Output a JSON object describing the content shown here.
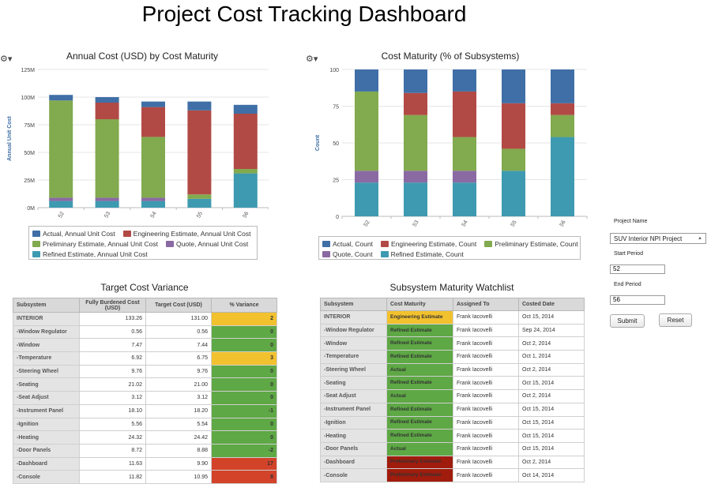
{
  "page": {
    "title": "Project Cost Tracking Dashboard"
  },
  "colors": {
    "actual": "#3f6fa6",
    "engineering": "#b14a45",
    "preliminary": "#82aa4e",
    "quote": "#8a6aa3",
    "refined": "#3e9ab0",
    "var_green": "#5ea845",
    "var_yellow": "#f2c12e",
    "var_red": "#d2432a",
    "mat_yellow": "#f2c12e",
    "mat_red": "#a01c0d"
  },
  "gear_glyph": "⚙▾",
  "chart_data": [
    {
      "type": "bar",
      "title": "Annual Cost (USD) by Cost Maturity",
      "ylabel": "Annual Unit Cost",
      "categories": [
        "52",
        "53",
        "54",
        "55",
        "56"
      ],
      "ylim": [
        0,
        125
      ],
      "yticks": [
        {
          "v": 0,
          "label": "0M"
        },
        {
          "v": 25,
          "label": "25M"
        },
        {
          "v": 50,
          "label": "50M"
        },
        {
          "v": 75,
          "label": "75M"
        },
        {
          "v": 100,
          "label": "100M"
        },
        {
          "v": 125,
          "label": "125M"
        }
      ],
      "stacked": true,
      "series": [
        {
          "name": "Refined Estimate, Annual Unit Cost",
          "key": "refined",
          "values": [
            6,
            6,
            6,
            8,
            31
          ]
        },
        {
          "name": "Quote, Annual Unit Cost",
          "key": "quote",
          "values": [
            3,
            3,
            3,
            0,
            0
          ]
        },
        {
          "name": "Preliminary Estimate, Annual Unit Cost",
          "key": "preliminary",
          "values": [
            88,
            71,
            55,
            4,
            4
          ]
        },
        {
          "name": "Engineering Estimate, Annual Unit Cost",
          "key": "engineering",
          "values": [
            0,
            15,
            27,
            76,
            50
          ]
        },
        {
          "name": "Actual, Annual Unit Cost",
          "key": "actual",
          "values": [
            5,
            5,
            5,
            8,
            8
          ]
        }
      ],
      "legend_rows": [
        [
          "Actual, Annual Unit Cost",
          "Engineering Estimate, Annual Unit Cost"
        ],
        [
          "Preliminary Estimate, Annual Unit Cost",
          "Quote, Annual Unit Cost"
        ],
        [
          "Refined Estimate, Annual Unit Cost"
        ]
      ]
    },
    {
      "type": "bar",
      "title": "Cost Maturity (% of Subsystems)",
      "ylabel": "Count",
      "categories": [
        "52",
        "53",
        "54",
        "55",
        "56"
      ],
      "ylim": [
        0,
        100
      ],
      "yticks": [
        {
          "v": 0,
          "label": "0"
        },
        {
          "v": 25,
          "label": "25"
        },
        {
          "v": 50,
          "label": "50"
        },
        {
          "v": 75,
          "label": "75"
        },
        {
          "v": 100,
          "label": "100"
        }
      ],
      "stacked": true,
      "series": [
        {
          "name": "Refined Estimate, Count",
          "key": "refined",
          "values": [
            23,
            23,
            23,
            31,
            54
          ]
        },
        {
          "name": "Quote, Count",
          "key": "quote",
          "values": [
            8,
            8,
            8,
            0,
            0
          ]
        },
        {
          "name": "Preliminary Estimate, Count",
          "key": "preliminary",
          "values": [
            54,
            38,
            23,
            15,
            15
          ]
        },
        {
          "name": "Engineering Estimate, Count",
          "key": "engineering",
          "values": [
            0,
            15,
            31,
            31,
            8
          ]
        },
        {
          "name": "Actual, Count",
          "key": "actual",
          "values": [
            15,
            16,
            15,
            23,
            23
          ]
        }
      ],
      "legend_rows": [
        [
          "Actual, Count",
          "Engineering Estimate, Count",
          "Preliminary Estimate, Count"
        ],
        [
          "Quote, Count",
          "Refined Estimate, Count"
        ]
      ]
    }
  ],
  "variance": {
    "title": "Target Cost Variance",
    "headers": [
      "Subsystem",
      "Fully Burdened Cost (USD)",
      "Target Cost (USD)",
      "% Variance"
    ],
    "rows": [
      {
        "name": "INTERIOR",
        "cost": "133.26",
        "target": "131.00",
        "var": "2",
        "status": "yellow"
      },
      {
        "name": "-Window Regulator",
        "cost": "0.56",
        "target": "0.56",
        "var": "0",
        "status": "green"
      },
      {
        "name": "-Window",
        "cost": "7.47",
        "target": "7.44",
        "var": "0",
        "status": "green"
      },
      {
        "name": "-Temperature",
        "cost": "6.92",
        "target": "6.75",
        "var": "3",
        "status": "yellow"
      },
      {
        "name": "-Steering Wheel",
        "cost": "9.76",
        "target": "9.76",
        "var": "0",
        "status": "green"
      },
      {
        "name": "-Seating",
        "cost": "21.02",
        "target": "21.00",
        "var": "0",
        "status": "green"
      },
      {
        "name": "-Seat Adjust",
        "cost": "3.12",
        "target": "3.12",
        "var": "0",
        "status": "green"
      },
      {
        "name": "-Instrument Panel",
        "cost": "18.10",
        "target": "18.20",
        "var": "-1",
        "status": "green"
      },
      {
        "name": "-Ignition",
        "cost": "5.56",
        "target": "5.54",
        "var": "0",
        "status": "green"
      },
      {
        "name": "-Heating",
        "cost": "24.32",
        "target": "24.42",
        "var": "0",
        "status": "green"
      },
      {
        "name": "-Door Panels",
        "cost": "8.72",
        "target": "8.88",
        "var": "-2",
        "status": "green"
      },
      {
        "name": "-Dashboard",
        "cost": "11.63",
        "target": "9.90",
        "var": "17",
        "status": "red"
      },
      {
        "name": "-Console",
        "cost": "11.82",
        "target": "10.95",
        "var": "8",
        "status": "red"
      }
    ]
  },
  "watchlist": {
    "title": "Subsystem Maturity Watchlist",
    "headers": [
      "Subsystem",
      "Cost Maturity",
      "Assigned To",
      "Costed Date"
    ],
    "rows": [
      {
        "name": "INTERIOR",
        "maturity": "Engineering Estimate",
        "status": "yellow",
        "assigned": "Frank Iacovelli",
        "date": "Oct 15, 2014"
      },
      {
        "name": "-Window Regulator",
        "maturity": "Refined Estimate",
        "status": "green",
        "assigned": "Frank Iacovelli",
        "date": "Sep 24, 2014"
      },
      {
        "name": "-Window",
        "maturity": "Refined Estimate",
        "status": "green",
        "assigned": "Frank Iacovelli",
        "date": "Oct 2, 2014"
      },
      {
        "name": "-Temperature",
        "maturity": "Refined Estimate",
        "status": "green",
        "assigned": "Frank Iacovelli",
        "date": "Oct 1, 2014"
      },
      {
        "name": "-Steering Wheel",
        "maturity": "Actual",
        "status": "green",
        "assigned": "Frank Iacovelli",
        "date": "Oct 2, 2014"
      },
      {
        "name": "-Seating",
        "maturity": "Refined Estimate",
        "status": "green",
        "assigned": "Frank Iacovelli",
        "date": "Oct 15, 2014"
      },
      {
        "name": "-Seat Adjust",
        "maturity": "Actual",
        "status": "green",
        "assigned": "Frank Iacovelli",
        "date": "Oct 2, 2014"
      },
      {
        "name": "-Instrument Panel",
        "maturity": "Refined Estimate",
        "status": "green",
        "assigned": "Frank Iacovelli",
        "date": "Oct 15, 2014"
      },
      {
        "name": "-Ignition",
        "maturity": "Refined Estimate",
        "status": "green",
        "assigned": "Frank Iacovelli",
        "date": "Oct 15, 2014"
      },
      {
        "name": "-Heating",
        "maturity": "Refined Estimate",
        "status": "green",
        "assigned": "Frank Iacovelli",
        "date": "Oct 15, 2014"
      },
      {
        "name": "-Door Panels",
        "maturity": "Actual",
        "status": "green",
        "assigned": "Frank Iacovelli",
        "date": "Oct 15, 2014"
      },
      {
        "name": "-Dashboard",
        "maturity": "Preliminary Estimate",
        "status": "red",
        "assigned": "Frank Iacovelli",
        "date": "Oct 2, 2014"
      },
      {
        "name": "-Console",
        "maturity": "Preliminary Estimate",
        "status": "red",
        "assigned": "Frank Iacovelli",
        "date": "Oct 14, 2014"
      }
    ]
  },
  "filters": {
    "project_label": "Project Name",
    "project_value": "SUV Interior NPI Project",
    "dropdown_glyph": "▲",
    "start_label": "Start Period",
    "start_value": "52",
    "end_label": "End Period",
    "end_value": "56",
    "submit_label": "Submit",
    "reset_label": "Reset"
  }
}
